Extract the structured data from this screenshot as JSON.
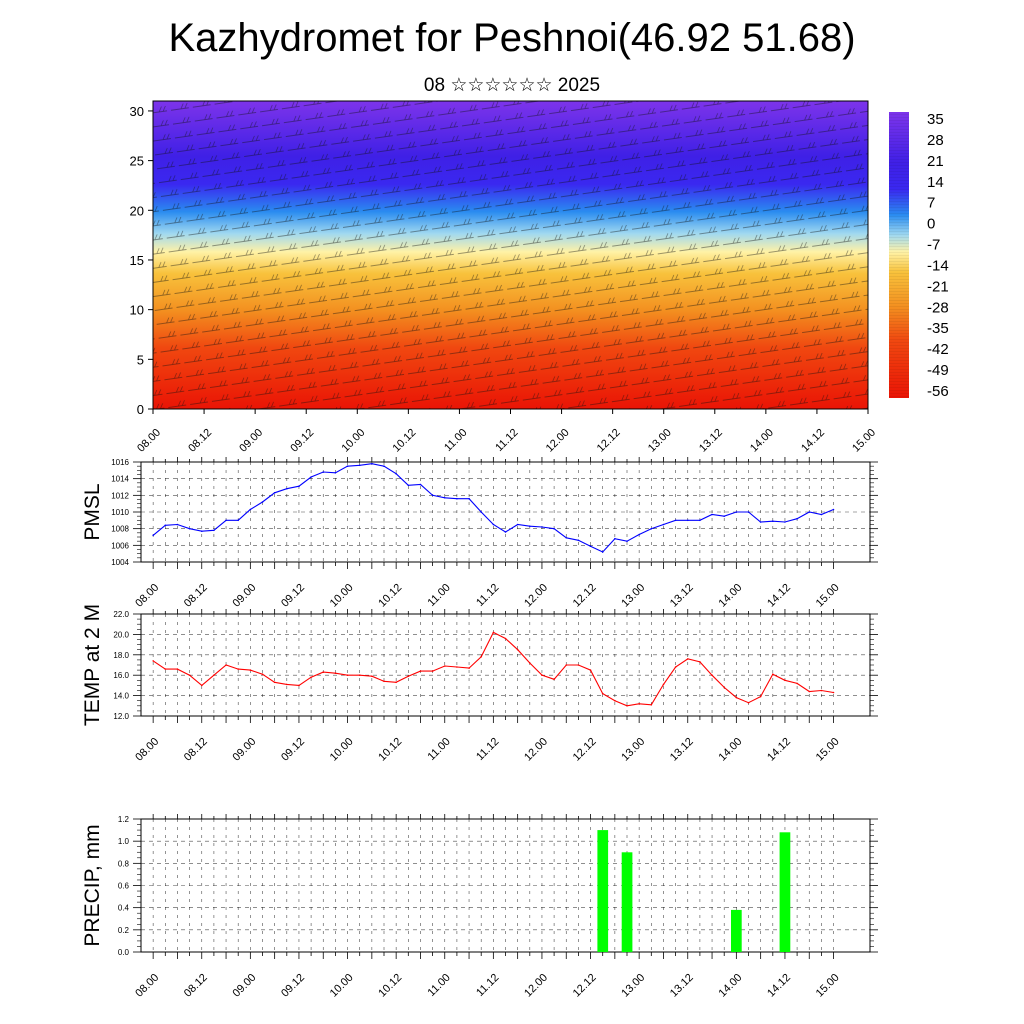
{
  "header": {
    "title": "Kazhydromet for Peshnoi(46.92 51.68)",
    "subtitle": "08 ☆☆☆☆☆☆ 2025"
  },
  "x_ticks": [
    "08.00",
    "08.12",
    "09.00",
    "09.12",
    "10.00",
    "10.12",
    "11.00",
    "11.12",
    "12.00",
    "12.12",
    "13.00",
    "13.12",
    "14.00",
    "14.12",
    "15.00"
  ],
  "chart_data": [
    {
      "type": "heatmap",
      "xlabel": "",
      "ylabel": "",
      "x_ticks": [
        "08.00",
        "08.12",
        "09.00",
        "09.12",
        "10.00",
        "10.12",
        "11.00",
        "11.12",
        "12.00",
        "12.12",
        "13.00",
        "13.12",
        "14.00",
        "14.12",
        "15.00"
      ],
      "ylim": [
        0,
        31
      ],
      "y_ticks": [
        0,
        5,
        10,
        15,
        20,
        25,
        30
      ],
      "colorbar_labels": [
        "35",
        "28",
        "21",
        "14",
        "7",
        "0",
        "-7",
        "-14",
        "-21",
        "-28",
        "-35",
        "-42",
        "-49",
        "-56"
      ],
      "colors": {
        "top": "#7a2ee8",
        "mid": "#f2c23a",
        "bottom": "#ef1a0a"
      }
    },
    {
      "type": "line",
      "ylabel": "PMSL",
      "ylim": [
        1004,
        1016
      ],
      "y_ticks": [
        "1004",
        "1006",
        "1008",
        "1010",
        "1012",
        "1014",
        "1016"
      ],
      "x": [
        0,
        0.25,
        0.5,
        0.75,
        1,
        1.25,
        1.5,
        1.75,
        2,
        2.25,
        2.5,
        2.75,
        3,
        3.25,
        3.5,
        3.75,
        4,
        4.25,
        4.5,
        4.75,
        5,
        5.25,
        5.5,
        5.75,
        6,
        6.25,
        6.5,
        6.75,
        7,
        7.25,
        7.5,
        7.75,
        8,
        8.25,
        8.5,
        8.75,
        9,
        9.25,
        9.5,
        9.75,
        10,
        10.25,
        10.5,
        10.75,
        11,
        11.25,
        11.5,
        11.75,
        12,
        12.25,
        12.5,
        12.75,
        13,
        13.25,
        13.5,
        13.75,
        14
      ],
      "series": [
        {
          "values": [
            1007.2,
            1008.4,
            1008.5,
            1008,
            1007.7,
            1007.8,
            1009,
            1009,
            1010.3,
            1011.2,
            1012.3,
            1012.8,
            1013.1,
            1014.2,
            1014.8,
            1014.7,
            1015.5,
            1015.6,
            1015.8,
            1015.5,
            1014.6,
            1013.2,
            1013.3,
            1012,
            1011.7,
            1011.6,
            1011.6,
            1010,
            1008.5,
            1007.6,
            1008.5,
            1008.3,
            1008.2,
            1008,
            1006.9,
            1006.6,
            1005.9,
            1005.2,
            1006.8,
            1006.5,
            1007.3,
            1008,
            1008.5,
            1009,
            1009,
            1009,
            1009.7,
            1009.5,
            1010,
            1010,
            1008.8,
            1008.9,
            1008.8,
            1009.2,
            1010,
            1009.7,
            1010.3
          ],
          "color": "#0000ff"
        }
      ]
    },
    {
      "type": "line",
      "ylabel": "TEMP at 2 M",
      "ylim": [
        12,
        22
      ],
      "y_ticks": [
        "12.0",
        "14.0",
        "16.0",
        "18.0",
        "20.0",
        "22.0"
      ],
      "x": [
        0,
        0.25,
        0.5,
        0.75,
        1,
        1.25,
        1.5,
        1.75,
        2,
        2.25,
        2.5,
        2.75,
        3,
        3.25,
        3.5,
        3.75,
        4,
        4.25,
        4.5,
        4.75,
        5,
        5.25,
        5.5,
        5.75,
        6,
        6.25,
        6.5,
        6.75,
        7,
        7.25,
        7.5,
        7.75,
        8,
        8.25,
        8.5,
        8.75,
        9,
        9.25,
        9.5,
        9.75,
        10,
        10.25,
        10.5,
        10.75,
        11,
        11.25,
        11.5,
        11.75,
        12,
        12.25,
        12.5,
        12.75,
        13,
        13.25,
        13.5,
        13.75,
        14
      ],
      "series": [
        {
          "values": [
            17.4,
            16.6,
            16.6,
            16,
            15,
            16,
            17,
            16.6,
            16.5,
            16.1,
            15.3,
            15.1,
            15,
            15.8,
            16.3,
            16.2,
            16,
            16,
            15.9,
            15.4,
            15.3,
            15.9,
            16.4,
            16.4,
            16.9,
            16.8,
            16.7,
            17.8,
            20.2,
            19.6,
            18.5,
            17.2,
            16,
            15.6,
            17,
            17,
            16.5,
            14.2,
            13.5,
            13,
            13.2,
            13.1,
            15.1,
            16.8,
            17.6,
            17.3,
            16,
            14.8,
            13.8,
            13.3,
            13.9,
            16.1,
            15.5,
            15.2,
            14.4,
            14.5,
            14.3
          ],
          "color": "#ff0000"
        }
      ]
    },
    {
      "type": "bar",
      "ylabel": "PRECIP, mm",
      "ylim": [
        0,
        1.2
      ],
      "y_ticks": [
        "0.0",
        "0.2",
        "0.4",
        "0.6",
        "0.8",
        "1.0",
        "1.2"
      ],
      "x": [
        9.25,
        9.75,
        12,
        13
      ],
      "values": [
        1.1,
        0.9,
        0.38,
        1.08
      ],
      "color": "#00ff00"
    }
  ]
}
